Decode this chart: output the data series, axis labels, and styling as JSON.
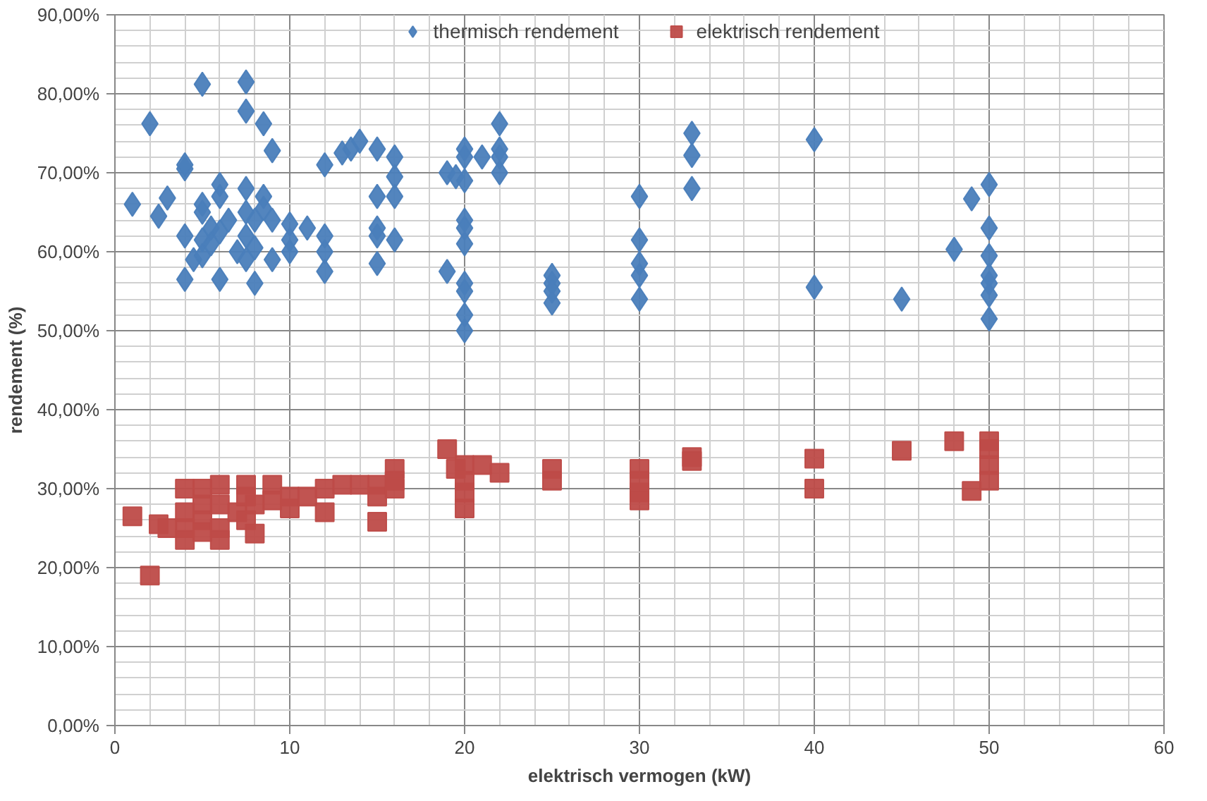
{
  "chart_data": {
    "type": "scatter",
    "xlabel": "elektrisch vermogen (kW)",
    "ylabel": "rendement (%)",
    "xlim": [
      0,
      60
    ],
    "xticks": [
      0,
      10,
      20,
      30,
      40,
      50,
      60
    ],
    "ylim": [
      0,
      0.9
    ],
    "yticks": [
      {
        "value": 0,
        "label": "0,00%"
      },
      {
        "value": 0.1,
        "label": "10,00%"
      },
      {
        "value": 0.2,
        "label": "20,00%"
      },
      {
        "value": 0.3,
        "label": "30,00%"
      },
      {
        "value": 0.4,
        "label": "40,00%"
      },
      {
        "value": 0.5,
        "label": "50,00%"
      },
      {
        "value": 0.6,
        "label": "60,00%"
      },
      {
        "value": 0.7,
        "label": "70,00%"
      },
      {
        "value": 0.8,
        "label": "80,00%"
      },
      {
        "value": 0.9,
        "label": "90,00%"
      }
    ],
    "grid": true,
    "legend": "top",
    "series": [
      {
        "name": "thermisch rendement",
        "color": "#4a7ebb",
        "marker": "diamond",
        "x": [
          1,
          2,
          2.5,
          3,
          4,
          4,
          4,
          4,
          4.5,
          5,
          5,
          5,
          5,
          5,
          5.5,
          5.5,
          6,
          6,
          6,
          6,
          6.5,
          7,
          7.5,
          7.5,
          7.5,
          7.5,
          7.5,
          7.5,
          8,
          8,
          8,
          8.5,
          8.5,
          8.5,
          9,
          9,
          9,
          10,
          10,
          10,
          11,
          12,
          12,
          12,
          12,
          13,
          13.5,
          14,
          15,
          15,
          15,
          15,
          15,
          16,
          16,
          16,
          16,
          19,
          19,
          19.5,
          20,
          20,
          20,
          20,
          20,
          20,
          20,
          20,
          20,
          20,
          21,
          22,
          22,
          22,
          22,
          25,
          25,
          25,
          25,
          30,
          30,
          30,
          30,
          30,
          33,
          33,
          33,
          40,
          40,
          45,
          48,
          49,
          50,
          50,
          50,
          50,
          50,
          50,
          50
        ],
        "values": [
          0.66,
          0.762,
          0.645,
          0.668,
          0.705,
          0.71,
          0.565,
          0.62,
          0.59,
          0.812,
          0.66,
          0.65,
          0.615,
          0.595,
          0.63,
          0.61,
          0.685,
          0.67,
          0.625,
          0.565,
          0.64,
          0.6,
          0.815,
          0.778,
          0.68,
          0.65,
          0.62,
          0.59,
          0.64,
          0.605,
          0.56,
          0.762,
          0.67,
          0.655,
          0.728,
          0.64,
          0.59,
          0.635,
          0.615,
          0.6,
          0.63,
          0.71,
          0.62,
          0.6,
          0.575,
          0.725,
          0.73,
          0.74,
          0.73,
          0.67,
          0.63,
          0.62,
          0.585,
          0.72,
          0.695,
          0.67,
          0.615,
          0.7,
          0.575,
          0.695,
          0.73,
          0.72,
          0.69,
          0.64,
          0.63,
          0.61,
          0.56,
          0.55,
          0.52,
          0.5,
          0.72,
          0.762,
          0.73,
          0.72,
          0.7,
          0.57,
          0.56,
          0.55,
          0.535,
          0.67,
          0.615,
          0.585,
          0.57,
          0.54,
          0.75,
          0.722,
          0.68,
          0.742,
          0.555,
          0.54,
          0.603,
          0.667,
          0.685,
          0.63,
          0.595,
          0.57,
          0.56,
          0.545,
          0.515
        ]
      },
      {
        "name": "elektrisch rendement",
        "color": "#be4b48",
        "marker": "square",
        "x": [
          1,
          2,
          2.5,
          3,
          4,
          4,
          4,
          4,
          5,
          5,
          5,
          5,
          6,
          6,
          6,
          6,
          7,
          7.5,
          7.5,
          7.5,
          8,
          8,
          9,
          9,
          10,
          10,
          11,
          12,
          12,
          13,
          14,
          15,
          15,
          15,
          16,
          16,
          16,
          19,
          19.5,
          20,
          20,
          20,
          20,
          21,
          22,
          25,
          25,
          30,
          30,
          30,
          30,
          33,
          33,
          40,
          40,
          45,
          48,
          49,
          50,
          50,
          50,
          50
        ],
        "values": [
          0.265,
          0.19,
          0.255,
          0.25,
          0.3,
          0.27,
          0.25,
          0.235,
          0.3,
          0.28,
          0.26,
          0.245,
          0.305,
          0.28,
          0.25,
          0.235,
          0.27,
          0.305,
          0.29,
          0.26,
          0.28,
          0.243,
          0.305,
          0.285,
          0.29,
          0.275,
          0.29,
          0.3,
          0.27,
          0.305,
          0.305,
          0.305,
          0.29,
          0.258,
          0.325,
          0.31,
          0.3,
          0.35,
          0.325,
          0.33,
          0.31,
          0.295,
          0.275,
          0.33,
          0.32,
          0.325,
          0.31,
          0.325,
          0.31,
          0.295,
          0.285,
          0.34,
          0.335,
          0.338,
          0.3,
          0.348,
          0.36,
          0.297,
          0.36,
          0.35,
          0.33,
          0.31
        ]
      }
    ]
  }
}
